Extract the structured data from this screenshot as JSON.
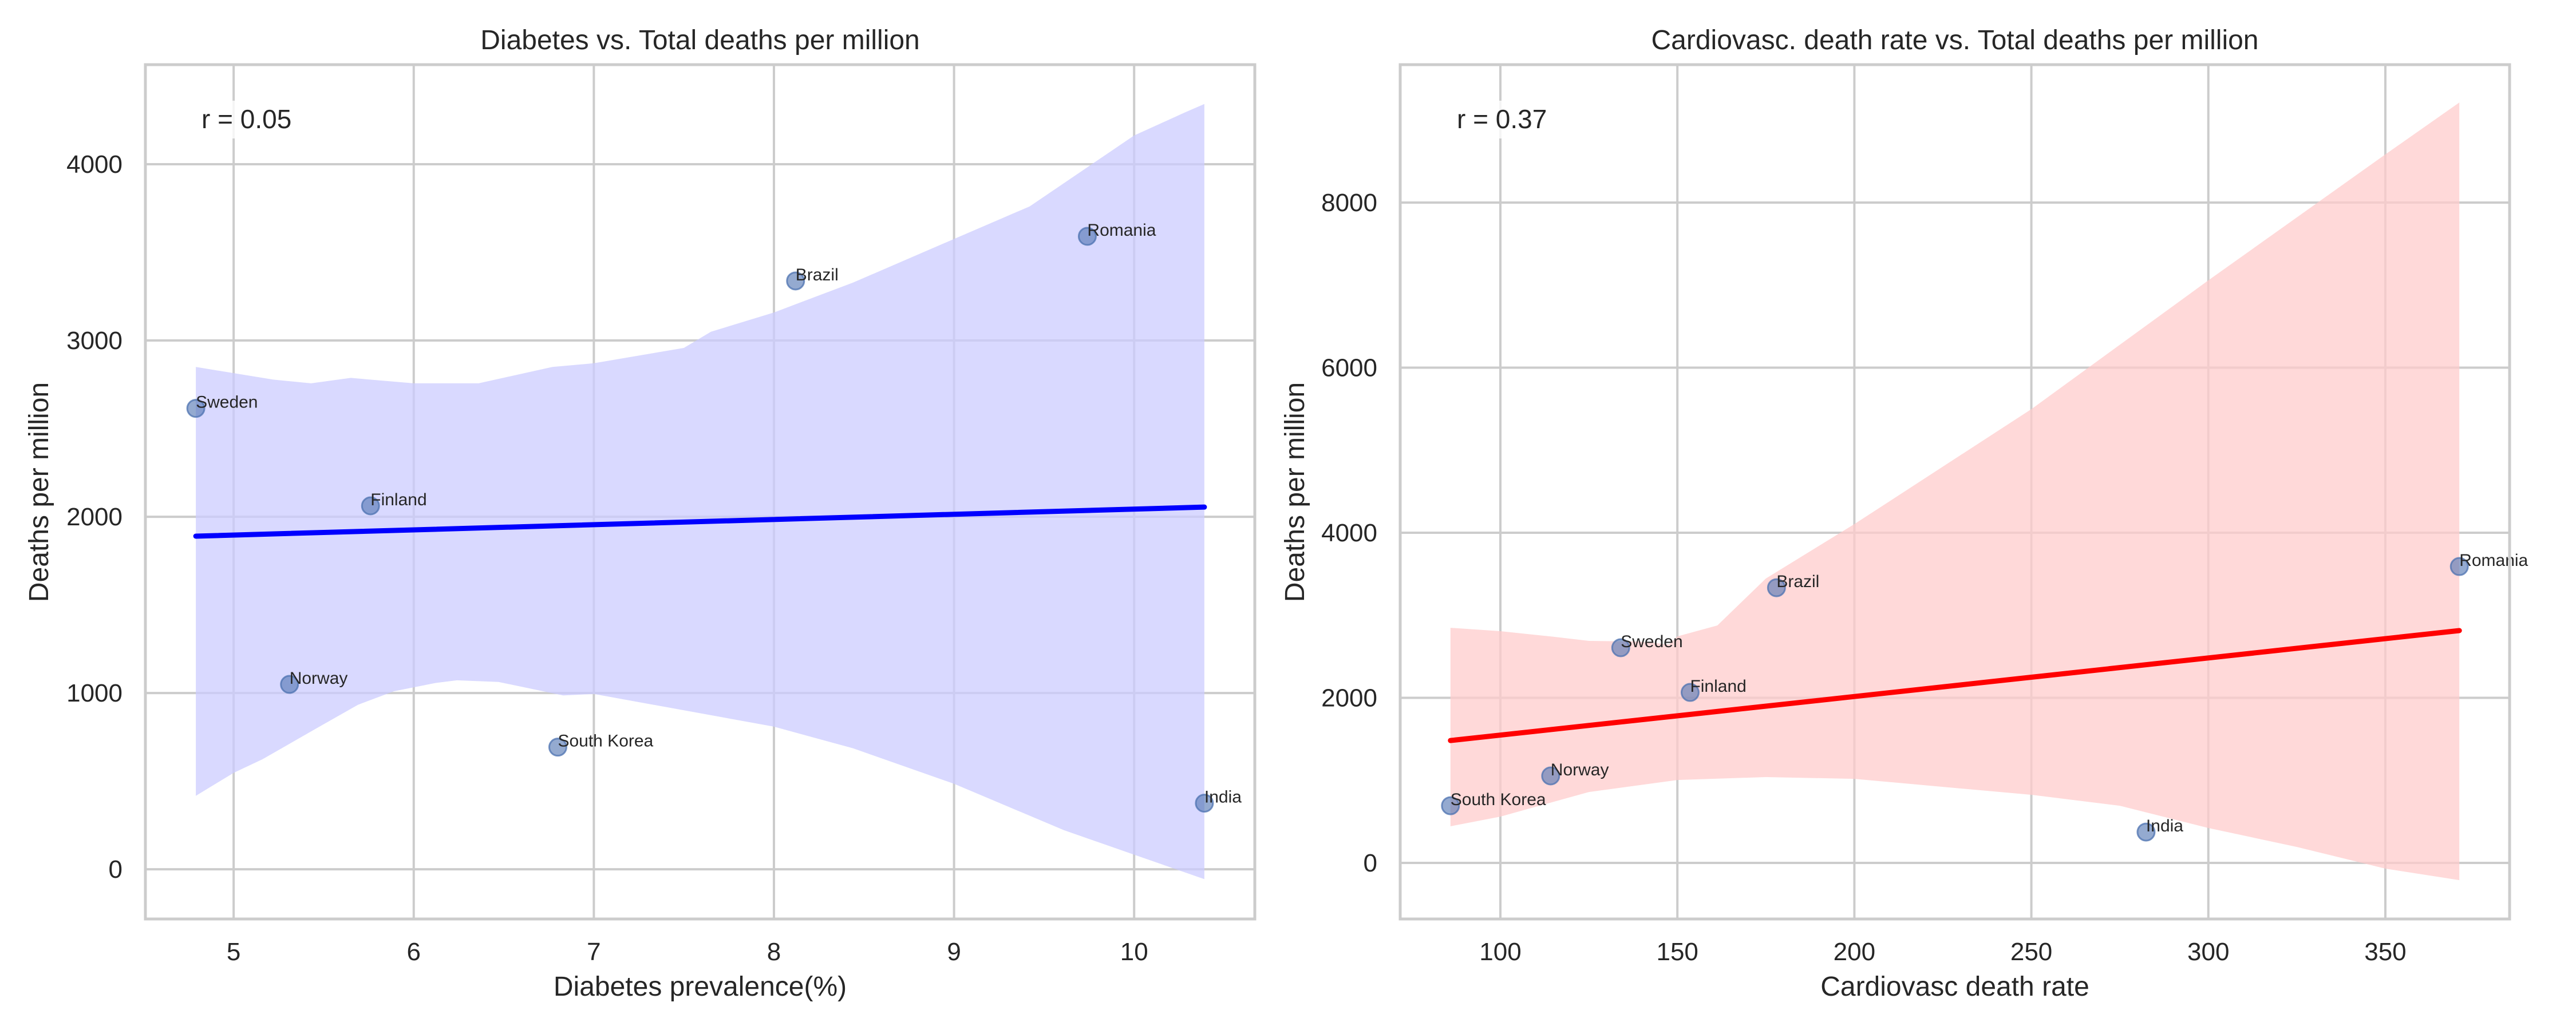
{
  "chart_data": [
    {
      "id": "left",
      "type": "scatter",
      "title": "Diabetes vs. Total deaths per million",
      "xlabel": "Diabetes prevalence(%)",
      "ylabel": "Deaths per million",
      "xlim": [
        4.51,
        10.67
      ],
      "ylim": [
        -282,
        4565
      ],
      "xticks": [
        5,
        6,
        7,
        8,
        9,
        10
      ],
      "yticks": [
        0,
        1000,
        2000,
        3000,
        4000
      ],
      "grid": true,
      "annotation": "r = 0.05",
      "point_color": "#4c72b0",
      "line_color": "#0000ff",
      "band_color": "#ccccff",
      "points": [
        {
          "label": "Sweden",
          "x": 4.79,
          "y": 2615
        },
        {
          "label": "Finland",
          "x": 5.76,
          "y": 2062
        },
        {
          "label": "Norway",
          "x": 5.31,
          "y": 1049
        },
        {
          "label": "South Korea",
          "x": 6.8,
          "y": 693
        },
        {
          "label": "Brazil",
          "x": 8.12,
          "y": 3338
        },
        {
          "label": "Romania",
          "x": 9.74,
          "y": 3591
        },
        {
          "label": "India",
          "x": 10.39,
          "y": 375
        }
      ],
      "regression": {
        "x": [
          4.79,
          10.39
        ],
        "y": [
          1890,
          2055
        ]
      },
      "ci_upper": [
        [
          4.79,
          2850
        ],
        [
          5.22,
          2778
        ],
        [
          5.43,
          2757
        ],
        [
          5.65,
          2788
        ],
        [
          6.0,
          2757
        ],
        [
          6.36,
          2757
        ],
        [
          6.77,
          2850
        ],
        [
          7.0,
          2871
        ],
        [
          7.5,
          2958
        ],
        [
          7.65,
          3050
        ],
        [
          8.0,
          3159
        ],
        [
          8.44,
          3329
        ],
        [
          9.0,
          3576
        ],
        [
          9.42,
          3761
        ],
        [
          10.0,
          4163
        ],
        [
          10.28,
          4293
        ],
        [
          10.39,
          4342
        ]
      ],
      "ci_lower": [
        [
          4.79,
          417
        ],
        [
          5.0,
          547
        ],
        [
          5.16,
          624
        ],
        [
          5.45,
          794
        ],
        [
          5.69,
          933
        ],
        [
          5.89,
          1010
        ],
        [
          6.12,
          1057
        ],
        [
          6.24,
          1072
        ],
        [
          6.47,
          1063
        ],
        [
          6.83,
          986
        ],
        [
          7.0,
          995
        ],
        [
          7.5,
          902
        ],
        [
          8.0,
          809
        ],
        [
          8.44,
          686
        ],
        [
          9.0,
          485
        ],
        [
          9.61,
          222
        ],
        [
          10.0,
          83
        ],
        [
          10.39,
          -56
        ]
      ]
    },
    {
      "id": "right",
      "type": "scatter",
      "title": "Cardiovasc. death rate vs. Total deaths per million",
      "xlabel": "Cardiovasc death rate",
      "ylabel": "Deaths per million",
      "xlim": [
        71.7,
        385.1
      ],
      "ylim": [
        -679,
        9671
      ],
      "xticks": [
        100,
        150,
        200,
        250,
        300,
        350
      ],
      "yticks": [
        0,
        2000,
        4000,
        6000,
        8000
      ],
      "grid": true,
      "annotation": "r = 0.37",
      "point_color": "#4c72b0",
      "line_color": "#ff0000",
      "band_color": "#ffcccc",
      "points": [
        {
          "label": "South Korea",
          "x": 85.9,
          "y": 693
        },
        {
          "label": "Norway",
          "x": 114.2,
          "y": 1054
        },
        {
          "label": "Sweden",
          "x": 134.0,
          "y": 2607
        },
        {
          "label": "Finland",
          "x": 153.6,
          "y": 2066
        },
        {
          "label": "Brazil",
          "x": 178.0,
          "y": 3334
        },
        {
          "label": "India",
          "x": 282.4,
          "y": 374
        },
        {
          "label": "Romania",
          "x": 370.9,
          "y": 3591
        }
      ],
      "regression": {
        "x": [
          85.9,
          370.9
        ],
        "y": [
          1483,
          2815
        ]
      },
      "ci_upper": [
        [
          85.9,
          2849
        ],
        [
          100,
          2808
        ],
        [
          115,
          2740
        ],
        [
          125,
          2690
        ],
        [
          139,
          2683
        ],
        [
          147.7,
          2648
        ],
        [
          150,
          2745
        ],
        [
          161.3,
          2877
        ],
        [
          175,
          3446
        ],
        [
          200,
          4105
        ],
        [
          250,
          5498
        ],
        [
          300,
          7058
        ],
        [
          350,
          8583
        ],
        [
          370.9,
          9213
        ]
      ],
      "ci_lower": [
        [
          85.9,
          444
        ],
        [
          100,
          561
        ],
        [
          125,
          859
        ],
        [
          150,
          1005
        ],
        [
          175,
          1040
        ],
        [
          200,
          1019
        ],
        [
          225,
          922
        ],
        [
          250,
          825
        ],
        [
          275,
          693
        ],
        [
          300,
          423
        ],
        [
          325,
          194
        ],
        [
          350,
          -69
        ],
        [
          370.9,
          -208
        ]
      ]
    }
  ]
}
